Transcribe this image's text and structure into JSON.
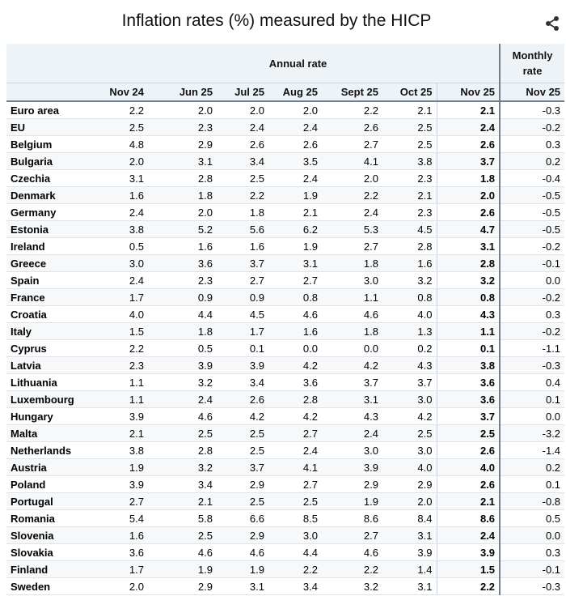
{
  "title": "Inflation rates (%) measured by the HICP",
  "share_icon": "share-icon",
  "table": {
    "group_annual": "Annual rate",
    "group_monthly_line1": "Monthly",
    "group_monthly_line2": "rate",
    "columns": [
      "Nov 24",
      "Jun 25",
      "Jul 25",
      "Aug 25",
      "Sept 25",
      "Oct 25",
      "Nov 25",
      "Nov 25"
    ],
    "rows": [
      {
        "country": "Euro area",
        "values": [
          "2.2",
          "2.0",
          "2.0",
          "2.0",
          "2.2",
          "2.1",
          "2.1",
          "-0.3"
        ]
      },
      {
        "country": "EU",
        "values": [
          "2.5",
          "2.3",
          "2.4",
          "2.4",
          "2.6",
          "2.5",
          "2.4",
          "-0.2"
        ]
      },
      {
        "country": "Belgium",
        "values": [
          "4.8",
          "2.9",
          "2.6",
          "2.6",
          "2.7",
          "2.5",
          "2.6",
          "0.3"
        ]
      },
      {
        "country": "Bulgaria",
        "values": [
          "2.0",
          "3.1",
          "3.4",
          "3.5",
          "4.1",
          "3.8",
          "3.7",
          "0.2"
        ]
      },
      {
        "country": "Czechia",
        "values": [
          "3.1",
          "2.8",
          "2.5",
          "2.4",
          "2.0",
          "2.3",
          "1.8",
          "-0.4"
        ]
      },
      {
        "country": "Denmark",
        "values": [
          "1.6",
          "1.8",
          "2.2",
          "1.9",
          "2.2",
          "2.1",
          "2.0",
          "-0.5"
        ]
      },
      {
        "country": "Germany",
        "values": [
          "2.4",
          "2.0",
          "1.8",
          "2.1",
          "2.4",
          "2.3",
          "2.6",
          "-0.5"
        ]
      },
      {
        "country": "Estonia",
        "values": [
          "3.8",
          "5.2",
          "5.6",
          "6.2",
          "5.3",
          "4.5",
          "4.7",
          "-0.5"
        ]
      },
      {
        "country": "Ireland",
        "values": [
          "0.5",
          "1.6",
          "1.6",
          "1.9",
          "2.7",
          "2.8",
          "3.1",
          "-0.2"
        ]
      },
      {
        "country": "Greece",
        "values": [
          "3.0",
          "3.6",
          "3.7",
          "3.1",
          "1.8",
          "1.6",
          "2.8",
          "-0.1"
        ]
      },
      {
        "country": "Spain",
        "values": [
          "2.4",
          "2.3",
          "2.7",
          "2.7",
          "3.0",
          "3.2",
          "3.2",
          "0.0"
        ]
      },
      {
        "country": "France",
        "values": [
          "1.7",
          "0.9",
          "0.9",
          "0.8",
          "1.1",
          "0.8",
          "0.8",
          "-0.2"
        ]
      },
      {
        "country": "Croatia",
        "values": [
          "4.0",
          "4.4",
          "4.5",
          "4.6",
          "4.6",
          "4.0",
          "4.3",
          "0.3"
        ]
      },
      {
        "country": "Italy",
        "values": [
          "1.5",
          "1.8",
          "1.7",
          "1.6",
          "1.8",
          "1.3",
          "1.1",
          "-0.2"
        ]
      },
      {
        "country": "Cyprus",
        "values": [
          "2.2",
          "0.5",
          "0.1",
          "0.0",
          "0.0",
          "0.2",
          "0.1",
          "-1.1"
        ]
      },
      {
        "country": "Latvia",
        "values": [
          "2.3",
          "3.9",
          "3.9",
          "4.2",
          "4.2",
          "4.3",
          "3.8",
          "-0.3"
        ]
      },
      {
        "country": "Lithuania",
        "values": [
          "1.1",
          "3.2",
          "3.4",
          "3.6",
          "3.7",
          "3.7",
          "3.6",
          "0.4"
        ]
      },
      {
        "country": "Luxembourg",
        "values": [
          "1.1",
          "2.4",
          "2.6",
          "2.8",
          "3.1",
          "3.0",
          "3.6",
          "0.1"
        ]
      },
      {
        "country": "Hungary",
        "values": [
          "3.9",
          "4.6",
          "4.2",
          "4.2",
          "4.3",
          "4.2",
          "3.7",
          "0.0"
        ]
      },
      {
        "country": "Malta",
        "values": [
          "2.1",
          "2.5",
          "2.5",
          "2.7",
          "2.4",
          "2.5",
          "2.5",
          "-3.2"
        ]
      },
      {
        "country": "Netherlands",
        "values": [
          "3.8",
          "2.8",
          "2.5",
          "2.4",
          "3.0",
          "3.0",
          "2.6",
          "-1.4"
        ]
      },
      {
        "country": "Austria",
        "values": [
          "1.9",
          "3.2",
          "3.7",
          "4.1",
          "3.9",
          "4.0",
          "4.0",
          "0.2"
        ]
      },
      {
        "country": "Poland",
        "values": [
          "3.9",
          "3.4",
          "2.9",
          "2.7",
          "2.9",
          "2.9",
          "2.6",
          "0.1"
        ]
      },
      {
        "country": "Portugal",
        "values": [
          "2.7",
          "2.1",
          "2.5",
          "2.5",
          "1.9",
          "2.0",
          "2.1",
          "-0.8"
        ]
      },
      {
        "country": "Romania",
        "values": [
          "5.4",
          "5.8",
          "6.6",
          "8.5",
          "8.6",
          "8.4",
          "8.6",
          "0.5"
        ]
      },
      {
        "country": "Slovenia",
        "values": [
          "1.6",
          "2.5",
          "2.9",
          "3.0",
          "2.7",
          "3.1",
          "2.4",
          "0.0"
        ]
      },
      {
        "country": "Slovakia",
        "values": [
          "3.6",
          "4.6",
          "4.6",
          "4.4",
          "4.6",
          "3.9",
          "3.9",
          "0.3"
        ]
      },
      {
        "country": "Finland",
        "values": [
          "1.7",
          "1.9",
          "1.9",
          "2.2",
          "2.2",
          "1.4",
          "1.5",
          "-0.1"
        ]
      },
      {
        "country": "Sweden",
        "values": [
          "2.0",
          "2.9",
          "3.1",
          "3.4",
          "3.2",
          "3.1",
          "2.2",
          "-0.3"
        ]
      }
    ]
  }
}
